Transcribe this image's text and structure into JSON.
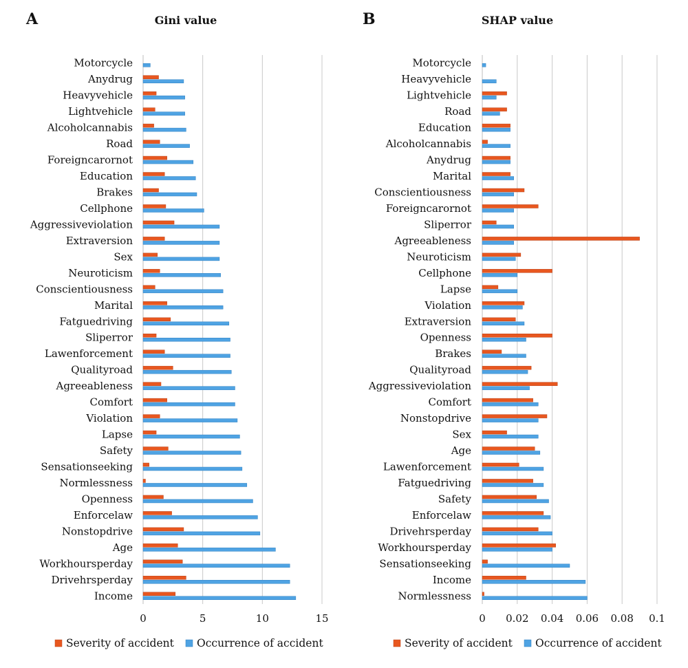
{
  "colors": {
    "severity": "#e8571f",
    "occurrence": "#4fa3e3",
    "severity_edge": "#b8431a",
    "occurrence_edge": "#3080c0"
  },
  "chart_data": [
    {
      "type": "bar",
      "orientation": "horizontal",
      "panel": "A",
      "title": "Gini value",
      "xlim": [
        0,
        15
      ],
      "xticks": [
        "0",
        "5",
        "10",
        "15"
      ],
      "tick_values": [
        0,
        5,
        10,
        15
      ],
      "legend": [
        "Severity of accident",
        "Occurrence of accident"
      ],
      "legend_position": "bottom",
      "grid": true,
      "categories": [
        "Motorcycle",
        "Anydrug",
        "Heavyvehicle",
        "Lightvehicle",
        "Alcoholcannabis",
        "Road",
        "Foreigncarornot",
        "Education",
        "Brakes",
        "Cellphone",
        "Aggressiveviolation",
        "Extraversion",
        "Sex",
        "Neuroticism",
        "Conscientiousness",
        "Marital",
        "Fatguedriving",
        "Sliperror",
        "Lawenforcement",
        "Qualityroad",
        "Agreeableness",
        "Comfort",
        "Violation",
        "Lapse",
        "Safety",
        "Sensationseeking",
        "Normlessness",
        "Openness",
        "Enforcelaw",
        "Nonstopdrive",
        "Age",
        "Workhoursperday",
        "Drivehrsperday",
        "Income"
      ],
      "series": [
        {
          "name": "Severity of accident",
          "values": [
            0,
            1.3,
            1.1,
            1.0,
            0.9,
            1.4,
            2.0,
            1.8,
            1.3,
            1.9,
            2.6,
            1.8,
            1.2,
            1.4,
            1.0,
            2.0,
            2.3,
            1.1,
            1.8,
            2.5,
            1.5,
            2.0,
            1.4,
            1.1,
            2.1,
            0.5,
            0.2,
            1.7,
            2.4,
            3.4,
            2.9,
            3.3,
            3.6,
            2.7
          ]
        },
        {
          "name": "Occurrence of accident",
          "values": [
            0.6,
            3.4,
            3.5,
            3.5,
            3.6,
            3.9,
            4.2,
            4.4,
            4.5,
            5.1,
            6.4,
            6.4,
            6.4,
            6.5,
            6.7,
            6.7,
            7.2,
            7.3,
            7.3,
            7.4,
            7.7,
            7.7,
            7.9,
            8.1,
            8.2,
            8.3,
            8.7,
            9.2,
            9.6,
            9.8,
            11.1,
            12.3,
            12.3,
            12.8
          ]
        }
      ]
    },
    {
      "type": "bar",
      "orientation": "horizontal",
      "panel": "B",
      "title": "SHAP  value",
      "xlim": [
        0,
        0.1
      ],
      "xticks": [
        "0",
        "0.02",
        "0.04",
        "0.06",
        "0.08",
        "0.1"
      ],
      "tick_values": [
        0,
        0.02,
        0.04,
        0.06,
        0.08,
        0.1
      ],
      "legend": [
        "Severity of accident",
        "Occurrence of accident"
      ],
      "legend_position": "bottom",
      "grid": true,
      "categories": [
        "Motorcycle",
        "Heavyvehicle",
        "Lightvehicle",
        "Road",
        "Education",
        "Alcoholcannabis",
        "Anydrug",
        "Marital",
        "Conscientiousness",
        "Foreigncarornot",
        "Sliperror",
        "Agreeableness",
        "Neuroticism",
        "Cellphone",
        "Lapse",
        "Violation",
        "Extraversion",
        "Openness",
        "Brakes",
        "Qualityroad",
        "Aggressiveviolation",
        "Comfort",
        "Nonstopdrive",
        "Sex",
        "Age",
        "Lawenforcement",
        "Fatguedriving",
        "Safety",
        "Enforcelaw",
        "Drivehrsperday",
        "Workhoursperday",
        "Sensationseeking",
        "Income",
        "Normlessness"
      ],
      "series": [
        {
          "name": "Severity of accident",
          "values": [
            0,
            0,
            0.014,
            0.014,
            0.016,
            0.003,
            0.016,
            0.016,
            0.024,
            0.032,
            0.008,
            0.09,
            0.022,
            0.04,
            0.009,
            0.024,
            0.019,
            0.04,
            0.011,
            0.028,
            0.043,
            0.029,
            0.037,
            0.014,
            0.03,
            0.021,
            0.029,
            0.031,
            0.035,
            0.032,
            0.042,
            0.003,
            0.025,
            0.001
          ]
        },
        {
          "name": "Occurrence of accident",
          "values": [
            0.002,
            0.008,
            0.008,
            0.01,
            0.016,
            0.016,
            0.016,
            0.018,
            0.018,
            0.018,
            0.018,
            0.018,
            0.019,
            0.02,
            0.02,
            0.023,
            0.024,
            0.025,
            0.025,
            0.026,
            0.027,
            0.032,
            0.032,
            0.032,
            0.033,
            0.035,
            0.035,
            0.038,
            0.039,
            0.04,
            0.04,
            0.05,
            0.059,
            0.06
          ]
        }
      ]
    }
  ]
}
